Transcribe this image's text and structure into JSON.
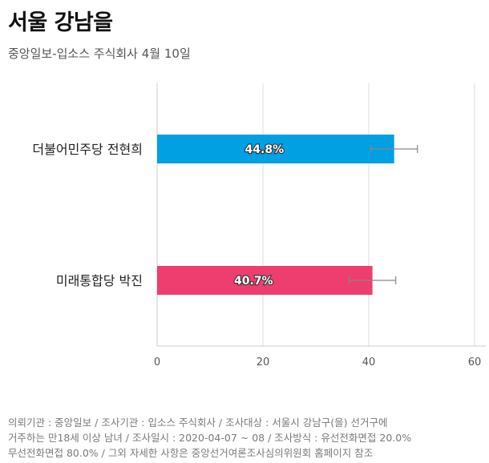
{
  "header": {
    "title": "서울 강남을",
    "subtitle": "중앙일보-입소스 주식회사 4월 10일"
  },
  "chart_data": {
    "type": "bar",
    "orientation": "horizontal",
    "categories": [
      "더불어민주당 전현희",
      "미래통합당 박진"
    ],
    "values": [
      44.8,
      40.7
    ],
    "value_labels": [
      "44.8%",
      "40.7%"
    ],
    "error_bars": [
      [
        40.4,
        49.2
      ],
      [
        36.3,
        45.1
      ]
    ],
    "colors": [
      "#00a0e2",
      "#ee3d6f"
    ],
    "xlim": [
      0,
      60
    ],
    "xticks": [
      "0",
      "20",
      "40",
      "60"
    ],
    "grid": true,
    "legend": "none"
  },
  "footnote": {
    "lines": [
      "의뢰기관 : 중앙일보 / 조사기관 : 입소스 주식회사 / 조사대상 : 서울시 강남구(을) 선거구에",
      "거주하는 만18세 이상 남녀 / 조사일시 : 2020-04-07 ~ 08 / 조사방식 : 유선전화면접 20.0%",
      "무선전화면접 80.0% / 그외 자세한 사항은 중앙선거여론조사심의위원회 홈페이지 참조"
    ]
  }
}
